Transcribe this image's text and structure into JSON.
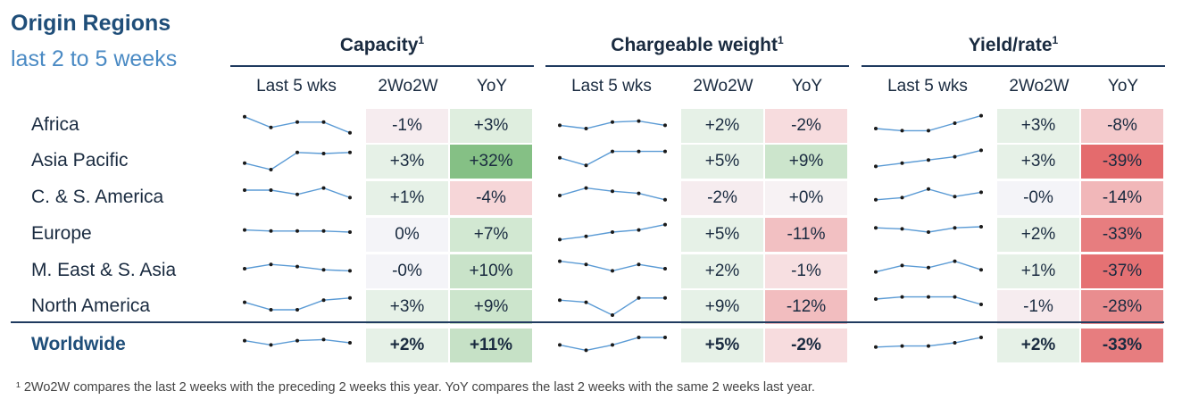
{
  "title": {
    "line1": "Origin Regions",
    "line2": "last 2 to 5 weeks"
  },
  "footnote": "¹ 2Wo2W compares the last 2 weeks with the preceding 2 weeks this year. YoY compares the last 2 weeks with the same 2 weeks last year.",
  "colors": {
    "green_strong": "#6cb36c",
    "red_strong": "#e3686a",
    "spark_line": "#5b9bd5"
  },
  "chart_data": {
    "type": "table",
    "groups": [
      {
        "name": "Capacity",
        "sup": "1"
      },
      {
        "name": "Chargeable weight",
        "sup": "1"
      },
      {
        "name": "Yield/rate",
        "sup": "1"
      }
    ],
    "columns": [
      "Last 5 wks",
      "2Wo2W",
      "YoY"
    ],
    "regions": [
      "Africa",
      "Asia Pacific",
      "C. & S. America",
      "Europe",
      "M. East & S. Asia",
      "North America",
      "Worldwide"
    ],
    "values": [
      [
        [
          "-1%",
          "+3%"
        ],
        [
          "+2%",
          "-2%"
        ],
        [
          "+3%",
          "-8%"
        ]
      ],
      [
        [
          "+3%",
          "+32%"
        ],
        [
          "+5%",
          "+9%"
        ],
        [
          "+3%",
          "-39%"
        ]
      ],
      [
        [
          "+1%",
          "-4%"
        ],
        [
          "-2%",
          "+0%"
        ],
        [
          "-0%",
          "-14%"
        ]
      ],
      [
        [
          "0%",
          "+7%"
        ],
        [
          "+5%",
          "-11%"
        ],
        [
          "+2%",
          "-33%"
        ]
      ],
      [
        [
          "-0%",
          "+10%"
        ],
        [
          "+2%",
          "-1%"
        ],
        [
          "+1%",
          "-37%"
        ]
      ],
      [
        [
          "+3%",
          "+9%"
        ],
        [
          "+9%",
          "-12%"
        ],
        [
          "-1%",
          "-28%"
        ]
      ],
      [
        [
          "+2%",
          "+11%"
        ],
        [
          "+5%",
          "-2%"
        ],
        [
          "+2%",
          "-33%"
        ]
      ]
    ],
    "sparklines": [
      [
        [
          0.8,
          0.3,
          0.55,
          0.55,
          0.05
        ],
        [
          0.4,
          0.25,
          0.55,
          0.6,
          0.4
        ],
        [
          0.25,
          0.15,
          0.15,
          0.5,
          0.85
        ]
      ],
      [
        [
          0.3,
          0.0,
          0.8,
          0.75,
          0.8
        ],
        [
          0.55,
          0.2,
          0.85,
          0.85,
          0.85
        ],
        [
          0.15,
          0.3,
          0.45,
          0.6,
          0.9
        ]
      ],
      [
        [
          0.75,
          0.75,
          0.55,
          0.85,
          0.4
        ],
        [
          0.5,
          0.85,
          0.7,
          0.6,
          0.3
        ],
        [
          0.3,
          0.4,
          0.8,
          0.45,
          0.65
        ]
      ],
      [
        [
          0.6,
          0.55,
          0.55,
          0.55,
          0.5
        ],
        [
          0.15,
          0.3,
          0.5,
          0.6,
          0.85
        ],
        [
          0.7,
          0.65,
          0.5,
          0.7,
          0.75
        ]
      ],
      [
        [
          0.5,
          0.7,
          0.6,
          0.45,
          0.4
        ],
        [
          0.85,
          0.7,
          0.4,
          0.7,
          0.5
        ],
        [
          0.35,
          0.65,
          0.55,
          0.85,
          0.45
        ]
      ],
      [
        [
          0.6,
          0.25,
          0.25,
          0.7,
          0.8
        ],
        [
          0.7,
          0.6,
          0.0,
          0.8,
          0.8
        ],
        [
          0.75,
          0.85,
          0.85,
          0.85,
          0.5
        ]
      ],
      [
        [
          0.6,
          0.4,
          0.6,
          0.65,
          0.5
        ],
        [
          0.4,
          0.15,
          0.4,
          0.75,
          0.75
        ],
        [
          0.3,
          0.35,
          0.35,
          0.5,
          0.75
        ]
      ]
    ]
  }
}
